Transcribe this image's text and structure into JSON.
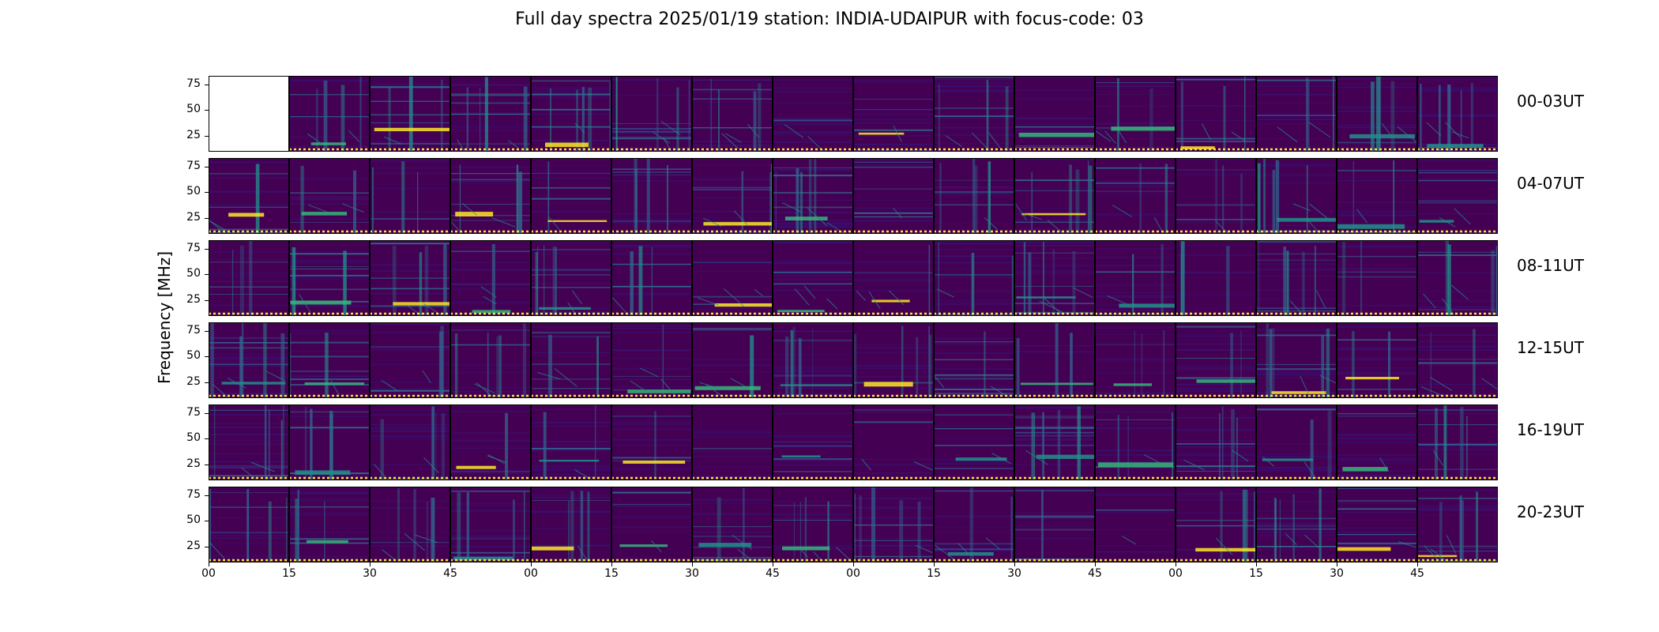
{
  "title": "Full day spectra 2025/01/19 station: INDIA-UDAIPUR with focus-code: 03",
  "chart_data": {
    "type": "heatmap",
    "title": "Full day spectra 2025/01/19 station: INDIA-UDAIPUR with focus-code: 03",
    "ylabel": "Frequency [MHz]",
    "yticks": [
      "75",
      "50",
      "25"
    ],
    "ytick_values": [
      75,
      50,
      25
    ],
    "ylim": [
      10,
      83
    ],
    "xticks": [
      "00",
      "15",
      "30",
      "45",
      "00",
      "15",
      "30",
      "45",
      "00",
      "15",
      "30",
      "45",
      "00",
      "15",
      "30",
      "45"
    ],
    "colormap": "viridis",
    "rows": [
      {
        "label": "00-03UT",
        "missing_panels": [
          0
        ]
      },
      {
        "label": "04-07UT",
        "missing_panels": []
      },
      {
        "label": "08-11UT",
        "missing_panels": []
      },
      {
        "label": "12-15UT",
        "missing_panels": []
      },
      {
        "label": "16-19UT",
        "missing_panels": []
      },
      {
        "label": "20-23UT",
        "missing_panels": []
      }
    ],
    "panels_per_row": 16
  },
  "colors": {
    "background": "#440154",
    "dark": "#3b0f70",
    "mid": "#31688e",
    "teal": "#21918c",
    "green": "#35b779",
    "yellow": "#fde725"
  }
}
